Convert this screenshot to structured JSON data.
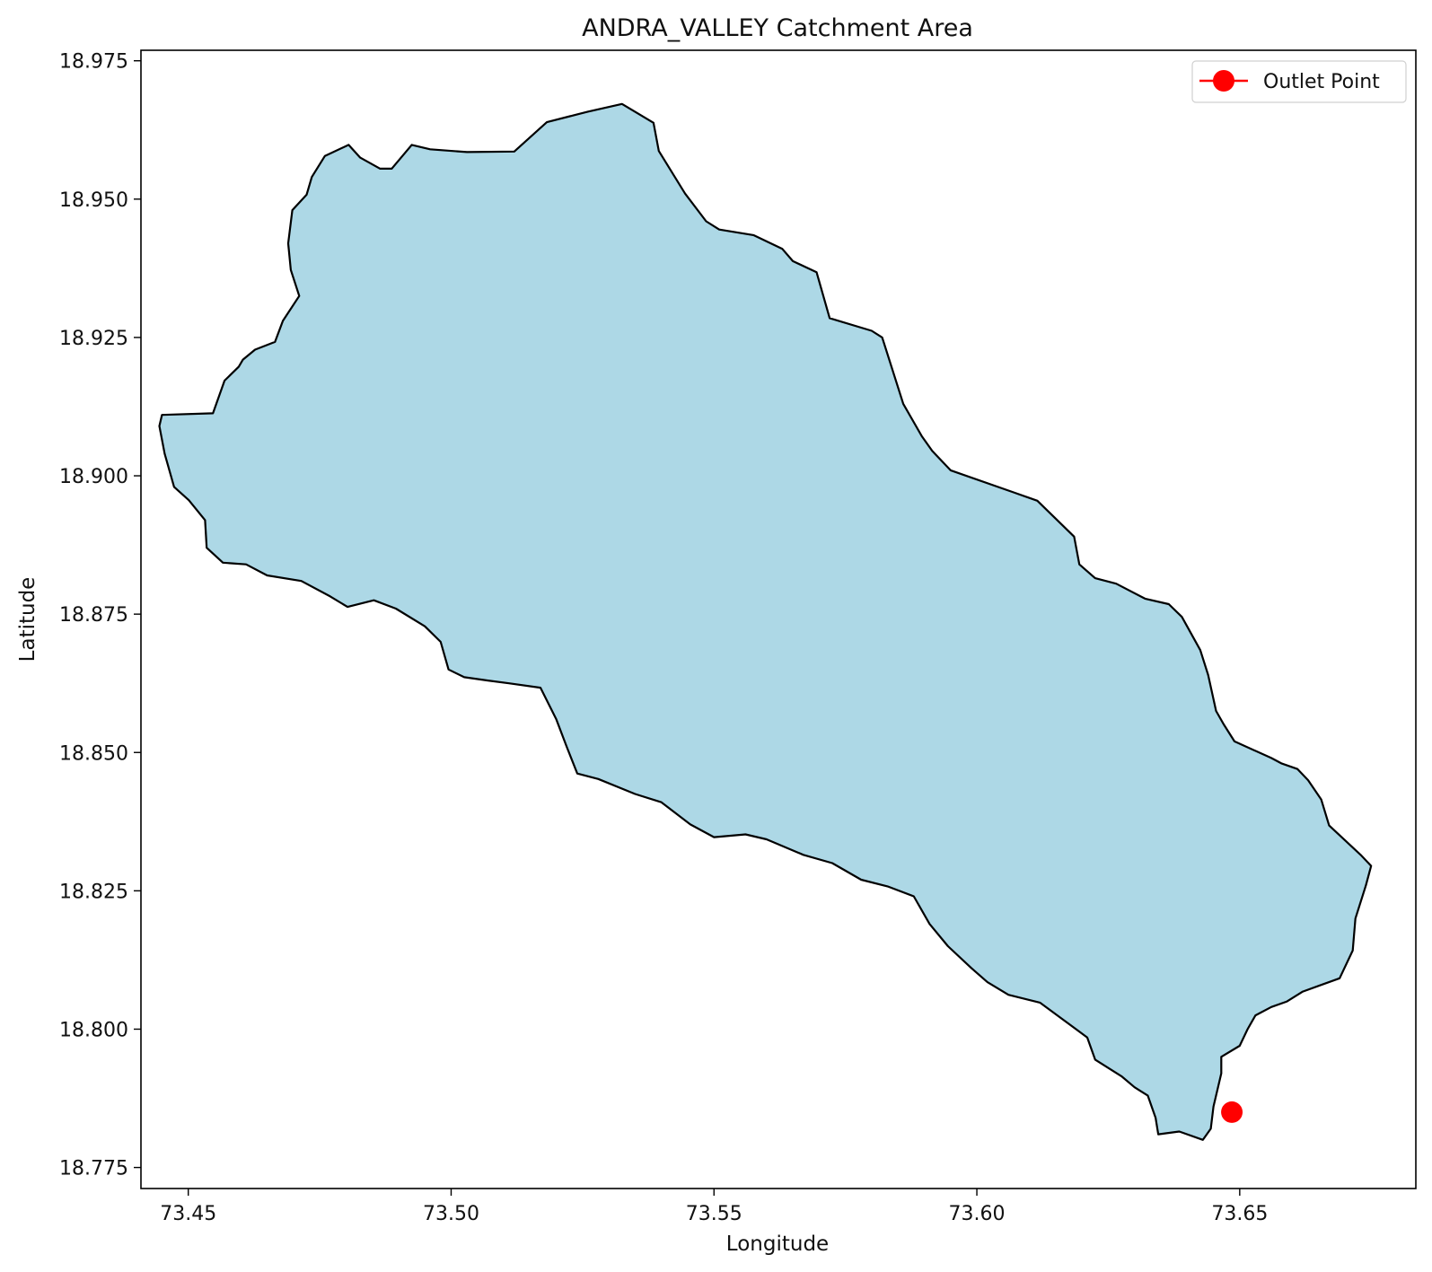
{
  "chart_data": {
    "type": "map",
    "title": "ANDRA_VALLEY Catchment Area",
    "xlabel": "Longitude",
    "ylabel": "Latitude",
    "xlim": [
      73.441,
      73.6835
    ],
    "ylim": [
      18.7712,
      18.9769
    ],
    "xticks": [
      73.45,
      73.5,
      73.55,
      73.6,
      73.65
    ],
    "xtick_labels": [
      "73.45",
      "73.50",
      "73.55",
      "73.60",
      "73.65"
    ],
    "yticks": [
      18.775,
      18.8,
      18.825,
      18.85,
      18.875,
      18.9,
      18.925,
      18.95,
      18.975
    ],
    "ytick_labels": [
      "18.775",
      "18.800",
      "18.825",
      "18.850",
      "18.875",
      "18.900",
      "18.925",
      "18.950",
      "18.975"
    ],
    "grid": false,
    "legend_position": "top-right",
    "legend": [
      {
        "label": "Outlet Point",
        "marker": "circle",
        "color": "#ff0000"
      }
    ],
    "catchment": {
      "fill": "#add8e6",
      "edge": "#000000",
      "boundary": [
        [
          73.4547,
          18.9113
        ],
        [
          73.4569,
          18.9172
        ],
        [
          73.4596,
          18.9197
        ],
        [
          73.4604,
          18.921
        ],
        [
          73.4627,
          18.9228
        ],
        [
          73.4665,
          18.9242
        ],
        [
          73.468,
          18.928
        ],
        [
          73.4711,
          18.9325
        ],
        [
          73.4695,
          18.9372
        ],
        [
          73.469,
          18.942
        ],
        [
          73.4698,
          18.948
        ],
        [
          73.4725,
          18.9508
        ],
        [
          73.4735,
          18.954
        ],
        [
          73.476,
          18.9578
        ],
        [
          73.4805,
          18.9598
        ],
        [
          73.4827,
          18.9575
        ],
        [
          73.4865,
          18.9555
        ],
        [
          73.4887,
          18.9555
        ],
        [
          73.4925,
          18.9598
        ],
        [
          73.496,
          18.959
        ],
        [
          73.503,
          18.9585
        ],
        [
          73.512,
          18.9586
        ],
        [
          73.5182,
          18.9639
        ],
        [
          73.526,
          18.9658
        ],
        [
          73.5325,
          18.9672
        ],
        [
          73.5385,
          18.9638
        ],
        [
          73.5395,
          18.9587
        ],
        [
          73.5445,
          18.951
        ],
        [
          73.5485,
          18.946
        ],
        [
          73.551,
          18.9445
        ],
        [
          73.5575,
          18.9435
        ],
        [
          73.563,
          18.941
        ],
        [
          73.565,
          18.9388
        ],
        [
          73.5695,
          18.9368
        ],
        [
          73.572,
          18.9285
        ],
        [
          73.58,
          18.9262
        ],
        [
          73.582,
          18.925
        ],
        [
          73.586,
          18.913
        ],
        [
          73.5895,
          18.9072
        ],
        [
          73.5915,
          18.9045
        ],
        [
          73.595,
          18.901
        ],
        [
          73.607,
          18.897
        ],
        [
          73.6115,
          18.8955
        ],
        [
          73.6185,
          18.889
        ],
        [
          73.6195,
          18.884
        ],
        [
          73.6225,
          18.8815
        ],
        [
          73.6265,
          18.8805
        ],
        [
          73.632,
          18.8778
        ],
        [
          73.6365,
          18.8768
        ],
        [
          73.639,
          18.8745
        ],
        [
          73.6425,
          18.8685
        ],
        [
          73.644,
          18.864
        ],
        [
          73.6455,
          18.8575
        ],
        [
          73.647,
          18.855
        ],
        [
          73.649,
          18.852
        ],
        [
          73.656,
          18.849
        ],
        [
          73.658,
          18.848
        ],
        [
          73.661,
          18.847
        ],
        [
          73.663,
          18.845
        ],
        [
          73.6655,
          18.8415
        ],
        [
          73.667,
          18.8368
        ],
        [
          73.673,
          18.8315
        ],
        [
          73.675,
          18.8295
        ],
        [
          73.674,
          18.826
        ],
        [
          73.672,
          18.82
        ],
        [
          73.6715,
          18.8142
        ],
        [
          73.669,
          18.8092
        ],
        [
          73.6655,
          18.808
        ],
        [
          73.662,
          18.8068
        ],
        [
          73.659,
          18.805
        ],
        [
          73.656,
          18.804
        ],
        [
          73.653,
          18.8025
        ],
        [
          73.6515,
          18.8
        ],
        [
          73.65,
          18.797
        ],
        [
          73.6465,
          18.795
        ],
        [
          73.6465,
          18.792
        ],
        [
          73.645,
          18.786
        ],
        [
          73.6445,
          18.782
        ],
        [
          73.643,
          18.78
        ],
        [
          73.6385,
          18.7815
        ],
        [
          73.6345,
          18.781
        ],
        [
          73.634,
          18.784
        ],
        [
          73.6325,
          18.788
        ],
        [
          73.63,
          18.7895
        ],
        [
          73.6275,
          18.7915
        ],
        [
          73.6225,
          18.7945
        ],
        [
          73.621,
          18.7985
        ],
        [
          73.616,
          18.802
        ],
        [
          73.612,
          18.8048
        ],
        [
          73.606,
          18.8062
        ],
        [
          73.602,
          18.8085
        ],
        [
          73.599,
          18.811
        ],
        [
          73.5945,
          18.815
        ],
        [
          73.591,
          18.819
        ],
        [
          73.588,
          18.824
        ],
        [
          73.583,
          18.8258
        ],
        [
          73.578,
          18.827
        ],
        [
          73.5725,
          18.83
        ],
        [
          73.567,
          18.8315
        ],
        [
          73.56,
          18.8343
        ],
        [
          73.556,
          18.8352
        ],
        [
          73.55,
          18.8347
        ],
        [
          73.5455,
          18.837
        ],
        [
          73.54,
          18.841
        ],
        [
          73.535,
          18.8425
        ],
        [
          73.528,
          18.8452
        ],
        [
          73.524,
          18.8462
        ],
        [
          73.522,
          18.851
        ],
        [
          73.52,
          18.856
        ],
        [
          73.517,
          18.8617
        ],
        [
          73.511,
          18.8625
        ],
        [
          73.507,
          18.863
        ],
        [
          73.5025,
          18.8636
        ],
        [
          73.4995,
          18.865
        ],
        [
          73.498,
          18.87
        ],
        [
          73.495,
          18.8728
        ],
        [
          73.4895,
          18.876
        ],
        [
          73.4853,
          18.8775
        ],
        [
          73.4803,
          18.8763
        ],
        [
          73.477,
          18.8782
        ],
        [
          73.4715,
          18.881
        ],
        [
          73.465,
          18.882
        ],
        [
          73.461,
          18.884
        ],
        [
          73.4566,
          18.8843
        ],
        [
          73.4535,
          18.887
        ],
        [
          73.4532,
          18.892
        ],
        [
          73.4501,
          18.8956
        ],
        [
          73.4473,
          18.898
        ],
        [
          73.4455,
          18.904
        ],
        [
          73.4445,
          18.909
        ],
        [
          73.445,
          18.911
        ]
      ]
    },
    "outlet_point": {
      "x": 73.6485,
      "y": 18.785,
      "color": "#ff0000"
    }
  }
}
